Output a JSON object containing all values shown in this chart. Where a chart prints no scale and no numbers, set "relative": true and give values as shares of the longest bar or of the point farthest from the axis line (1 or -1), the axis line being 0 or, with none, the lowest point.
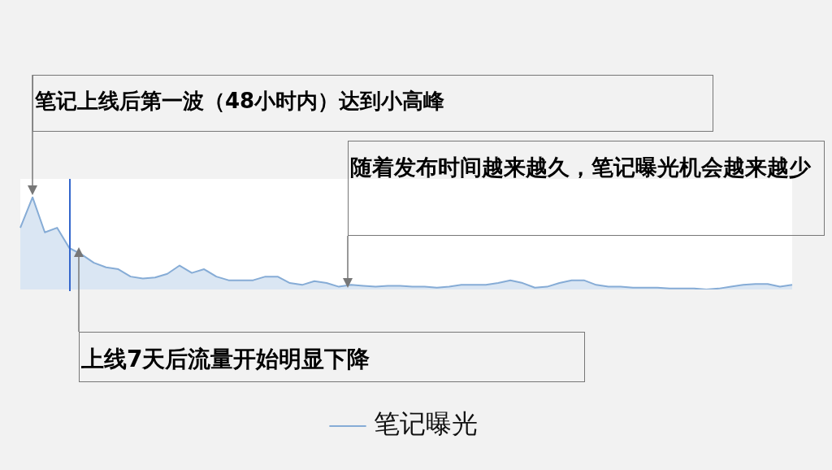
{
  "chart_data": {
    "type": "area",
    "relative": true,
    "legend": "bottom",
    "grid": false,
    "categories": [
      null,
      null,
      null,
      null,
      null,
      null,
      null,
      null,
      null,
      null,
      null,
      null,
      null,
      null,
      null,
      null,
      null,
      null,
      null,
      null,
      null,
      null,
      null,
      null,
      null,
      null,
      null,
      null,
      null,
      null,
      null,
      null,
      null,
      null,
      null,
      null,
      null,
      null,
      null,
      null,
      null,
      null,
      null,
      null,
      null,
      null,
      null,
      null,
      null,
      null,
      null,
      null,
      null,
      null,
      null,
      null,
      null,
      null,
      null,
      null,
      null,
      null,
      null,
      null
    ],
    "series": [
      {
        "name": "笔记曝光",
        "color": "#86acd6",
        "values": [
          0.67,
          1.0,
          0.62,
          0.67,
          0.45,
          0.38,
          0.29,
          0.24,
          0.22,
          0.14,
          0.12,
          0.13,
          0.17,
          0.26,
          0.18,
          0.22,
          0.14,
          0.1,
          0.1,
          0.1,
          0.14,
          0.14,
          0.07,
          0.05,
          0.09,
          0.07,
          0.03,
          0.05,
          0.04,
          0.03,
          0.04,
          0.04,
          0.03,
          0.03,
          0.02,
          0.03,
          0.05,
          0.05,
          0.05,
          0.07,
          0.1,
          0.07,
          0.02,
          0.03,
          0.07,
          0.1,
          0.1,
          0.05,
          0.03,
          0.03,
          0.02,
          0.02,
          0.02,
          0.01,
          0.01,
          0.01,
          0.0,
          0.01,
          0.03,
          0.05,
          0.06,
          0.06,
          0.03,
          0.05
        ]
      }
    ],
    "annotations": [
      "笔记上线后第一波（48小时内）达到小高峰",
      "随着发布时间越来越久，笔记曝光机会越来越少",
      "上线7天后流量开始明显下降"
    ]
  }
}
